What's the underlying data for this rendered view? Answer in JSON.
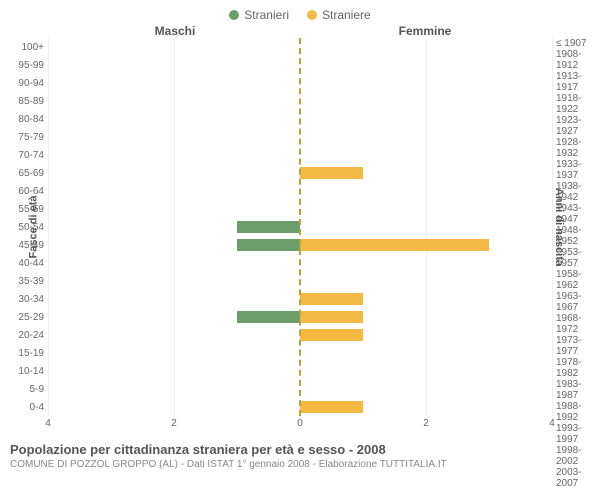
{
  "legend": {
    "male": {
      "label": "Stranieri",
      "color": "#6b9e6b"
    },
    "female": {
      "label": "Straniere",
      "color": "#f4b942"
    }
  },
  "columns": {
    "left": "Maschi",
    "right": "Femmine"
  },
  "axis_labels": {
    "left": "Fasce di età",
    "right": "Anni di nascita"
  },
  "chart": {
    "type": "population-pyramid",
    "xmax": 4,
    "xticks": [
      0,
      2,
      4
    ],
    "grid_color": "#eeeeee",
    "centerline_color": "#b7a537",
    "background": "#ffffff",
    "bar_colors": {
      "male": "#6b9e6b",
      "female": "#f4b942"
    },
    "rows": [
      {
        "age": "100+",
        "birth": "≤ 1907",
        "m": 0,
        "f": 0
      },
      {
        "age": "95-99",
        "birth": "1908-1912",
        "m": 0,
        "f": 0
      },
      {
        "age": "90-94",
        "birth": "1913-1917",
        "m": 0,
        "f": 0
      },
      {
        "age": "85-89",
        "birth": "1918-1922",
        "m": 0,
        "f": 0
      },
      {
        "age": "80-84",
        "birth": "1923-1927",
        "m": 0,
        "f": 0
      },
      {
        "age": "75-79",
        "birth": "1928-1932",
        "m": 0,
        "f": 0
      },
      {
        "age": "70-74",
        "birth": "1933-1937",
        "m": 0,
        "f": 0
      },
      {
        "age": "65-69",
        "birth": "1938-1942",
        "m": 0,
        "f": 1
      },
      {
        "age": "60-64",
        "birth": "1943-1947",
        "m": 0,
        "f": 0
      },
      {
        "age": "55-59",
        "birth": "1948-1952",
        "m": 0,
        "f": 0
      },
      {
        "age": "50-54",
        "birth": "1953-1957",
        "m": 1,
        "f": 0
      },
      {
        "age": "45-49",
        "birth": "1958-1962",
        "m": 1,
        "f": 3
      },
      {
        "age": "40-44",
        "birth": "1963-1967",
        "m": 0,
        "f": 0
      },
      {
        "age": "35-39",
        "birth": "1968-1972",
        "m": 0,
        "f": 0
      },
      {
        "age": "30-34",
        "birth": "1973-1977",
        "m": 0,
        "f": 1
      },
      {
        "age": "25-29",
        "birth": "1978-1982",
        "m": 1,
        "f": 1
      },
      {
        "age": "20-24",
        "birth": "1983-1987",
        "m": 0,
        "f": 1
      },
      {
        "age": "15-19",
        "birth": "1988-1992",
        "m": 0,
        "f": 0
      },
      {
        "age": "10-14",
        "birth": "1993-1997",
        "m": 0,
        "f": 0
      },
      {
        "age": "5-9",
        "birth": "1998-2002",
        "m": 0,
        "f": 0
      },
      {
        "age": "0-4",
        "birth": "2003-2007",
        "m": 0,
        "f": 1
      }
    ]
  },
  "footer": {
    "title": "Popolazione per cittadinanza straniera per età e sesso - 2008",
    "subtitle": "COMUNE DI POZZOL GROPPO (AL) - Dati ISTAT 1° gennaio 2008 - Elaborazione TUTTITALIA.IT"
  }
}
